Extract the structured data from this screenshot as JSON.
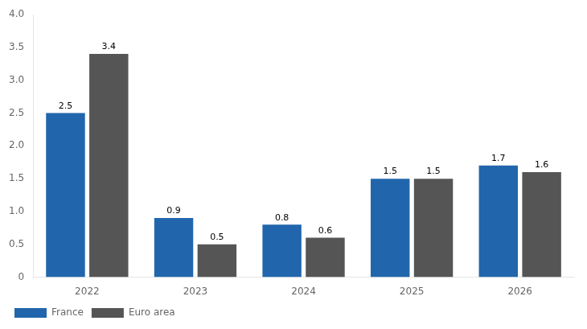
{
  "chart_data": {
    "type": "bar",
    "categories": [
      "2022",
      "2023",
      "2024",
      "2025",
      "2026"
    ],
    "series": [
      {
        "name": "France",
        "color": "#2166AC",
        "values": [
          2.5,
          0.9,
          0.8,
          1.5,
          1.7
        ]
      },
      {
        "name": "Euro area",
        "color": "#555555",
        "values": [
          3.4,
          0.5,
          0.6,
          1.5,
          1.6
        ]
      }
    ],
    "ylim": [
      0,
      4.0
    ],
    "yticks": [
      0,
      0.5,
      {
        "value": 1.0,
        "label": "1.0"
      },
      1.5,
      {
        "value": 2.0,
        "label": "2.0"
      },
      2.5,
      {
        "value": 3.0,
        "label": "3.0"
      },
      3.5,
      {
        "value": 4.0,
        "label": "4.0"
      }
    ],
    "grid": false,
    "legend": "bottom",
    "data_labels": true
  }
}
